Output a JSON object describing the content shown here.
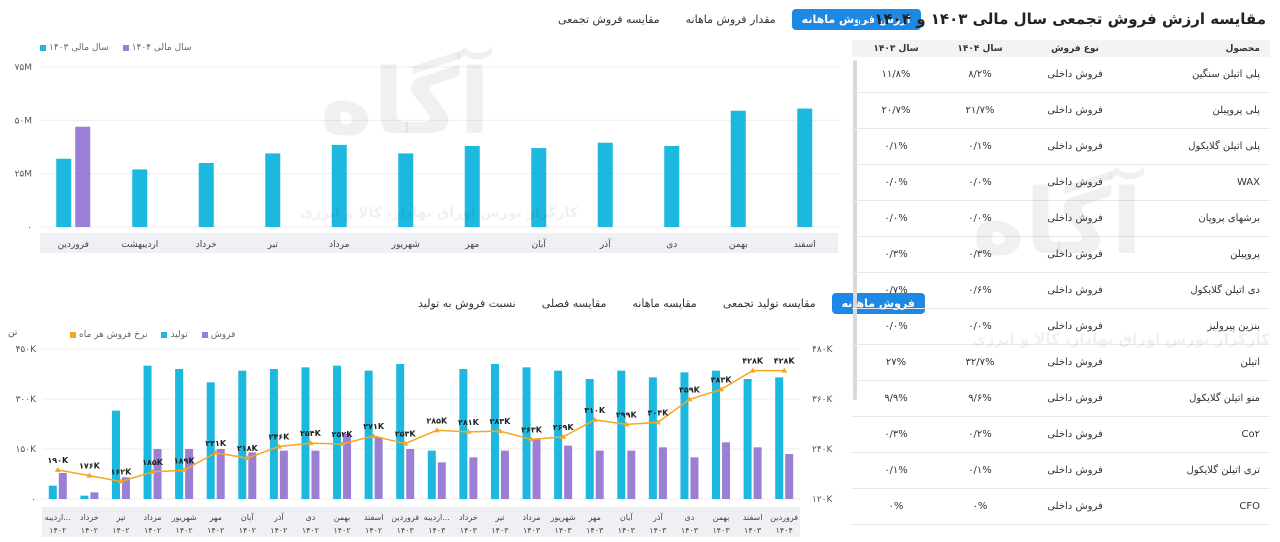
{
  "top_tabs": [
    "ارزش فروش ماهانه",
    "مقدار فروش ماهانه",
    "مقایسه فروش تجمعی"
  ],
  "bottom_tabs": [
    "فروش ماهانه",
    "مقایسه تولید تجمعی",
    "مقایسه ماهانه",
    "مقایسه فصلی",
    "نسبت فروش به تولید"
  ],
  "colors": {
    "blue": "#1cb8e0",
    "purple": "#9b7fd4",
    "orange": "#f5a623",
    "accent": "#1e88e5"
  },
  "watermark": {
    "brand": "آگاه",
    "tagline": "کارگزار بورس اوراق بهادار، کالا و انرژی"
  },
  "chart_data": [
    {
      "type": "bar",
      "legend": [
        "سال مالی ۱۴۰۳",
        "سال مالی ۱۴۰۴"
      ],
      "categories": [
        "فروردین",
        "اردیبهشت",
        "خرداد",
        "تیر",
        "مرداد",
        "شهریور",
        "مهر",
        "آبان",
        "آذر",
        "دی",
        "بهمن",
        "اسفند"
      ],
      "series": [
        {
          "name": "سال مالی ۱۴۰۳",
          "values": [
            32,
            27,
            30,
            34.5,
            38.5,
            34.5,
            38,
            37,
            39.5,
            38,
            54.5,
            55.5
          ]
        },
        {
          "name": "سال مالی ۱۴۰۴",
          "values": [
            47,
            null,
            null,
            null,
            null,
            null,
            null,
            null,
            null,
            null,
            null,
            null
          ]
        }
      ],
      "y_ticks": [
        "۷۵M",
        "۵۰M",
        "۲۵M",
        "۰"
      ],
      "ylim": [
        0,
        75
      ]
    },
    {
      "type": "bar-line",
      "legend": [
        "فروش",
        "تولید",
        "نرخ فروش هر ماه"
      ],
      "y_unit": "تن",
      "categories": [
        [
          "اردیبه...",
          "۱۴۰۲"
        ],
        [
          "خرداد",
          "۱۴۰۲"
        ],
        [
          "تیر",
          "۱۴۰۲"
        ],
        [
          "مرداد",
          "۱۴۰۲"
        ],
        [
          "شهریور",
          "۱۴۰۲"
        ],
        [
          "مهر",
          "۱۴۰۲"
        ],
        [
          "آبان",
          "۱۴۰۲"
        ],
        [
          "آذر",
          "۱۴۰۲"
        ],
        [
          "دی",
          "۱۴۰۲"
        ],
        [
          "بهمن",
          "۱۴۰۲"
        ],
        [
          "اسفند",
          "۱۴۰۲"
        ],
        [
          "فروردین",
          "۱۴۰۳"
        ],
        [
          "اردیبه...",
          "۱۴۰۳"
        ],
        [
          "خرداد",
          "۱۴۰۳"
        ],
        [
          "تیر",
          "۱۴۰۳"
        ],
        [
          "مرداد",
          "۱۴۰۳"
        ],
        [
          "شهریور",
          "۱۴۰۳"
        ],
        [
          "مهر",
          "۱۴۰۳"
        ],
        [
          "آبان",
          "۱۴۰۳"
        ],
        [
          "آذر",
          "۱۴۰۳"
        ],
        [
          "دی",
          "۱۴۰۳"
        ],
        [
          "بهمن",
          "۱۴۰۳"
        ],
        [
          "اسفند",
          "۱۴۰۳"
        ],
        [
          "فروردین",
          "۱۴۰۴"
        ]
      ],
      "production": [
        40,
        10,
        265,
        400,
        390,
        350,
        385,
        390,
        395,
        400,
        385,
        405,
        145,
        390,
        405,
        395,
        385,
        360,
        385,
        365,
        380,
        385,
        360,
        365
      ],
      "sales": [
        78,
        20,
        65,
        150,
        150,
        150,
        140,
        145,
        145,
        195,
        185,
        150,
        110,
        125,
        145,
        180,
        160,
        145,
        145,
        155,
        125,
        170,
        155,
        135
      ],
      "price": [
        190,
        176,
        162,
        185,
        189,
        231,
        218,
        246,
        254,
        252,
        271,
        253,
        285,
        281,
        283,
        263,
        269,
        310,
        299,
        304,
        359,
        383,
        428,
        428
      ],
      "price_labels": [
        "۱۹۰K",
        "۱۷۶K",
        "۱۶۲K",
        "۱۸۵K",
        "۱۸۹K",
        "۲۳۱K",
        "۲۱۸K",
        "۲۴۶K",
        "۲۵۴K",
        "۲۵۲K",
        "۲۷۱K",
        "۲۵۳K",
        "۲۸۵K",
        "۲۸۱K",
        "۲۸۳K",
        "۲۶۳K",
        "۲۶۹K",
        "۳۱۰K",
        "۲۹۹K",
        "۳۰۴K",
        "۳۵۹K",
        "۳۸۳K",
        "۴۲۸K",
        "۴۲۸K"
      ],
      "y_left_ticks": [
        "۴۵۰K",
        "۳۰۰K",
        "۱۵۰K",
        "۰"
      ],
      "y_right_ticks": [
        "۴۸۰K",
        "۳۶۰K",
        "۲۴۰K",
        "۱۲۰K"
      ],
      "ylim_left": [
        0,
        450
      ],
      "ylim_right": [
        120,
        480
      ]
    }
  ],
  "right_panel": {
    "title": "مقایسه ارزش فروش تجمعی سال مالی ۱۴۰۳ و ۱۴۰۴",
    "headers": [
      "محصول",
      "نوع فروش",
      "سال ۱۴۰۴",
      "سال ۱۴۰۳"
    ],
    "rows": [
      [
        "پلی اتیلن سنگین",
        "فروش داخلی",
        "۸/۲%",
        "۱۱/۸%"
      ],
      [
        "پلی پروپیلن",
        "فروش داخلی",
        "۲۱/۷%",
        "۲۰/۷%"
      ],
      [
        "پلی اتیلن گلایکول",
        "فروش داخلی",
        "۰/۱%",
        "۰/۱%"
      ],
      [
        "WAX",
        "فروش داخلی",
        "۰/۰%",
        "۰/۰%"
      ],
      [
        "برشهای پروپان",
        "فروش داخلی",
        "۰/۰%",
        "۰/۰%"
      ],
      [
        "پروپیلن",
        "فروش داخلی",
        "۰/۳%",
        "۰/۳%"
      ],
      [
        "دی اتیلن گلایکول",
        "فروش داخلی",
        "۰/۶%",
        "۰/۷%"
      ],
      [
        "بنزین پیرولیز",
        "فروش داخلی",
        "۰/۰%",
        "۰/۰%"
      ],
      [
        "اتیلن",
        "فروش داخلی",
        "۳۲/۷%",
        "۲۷%"
      ],
      [
        "منو اتیلن گلایکول",
        "فروش داخلی",
        "۹/۶%",
        "۹/۹%"
      ],
      [
        "Co۲",
        "فروش داخلی",
        "۰/۲%",
        "۰/۳%"
      ],
      [
        "تری اتیلن گلایکول",
        "فروش داخلی",
        "۰/۱%",
        "۰/۱%"
      ],
      [
        "CFO",
        "فروش داخلی",
        "۰%",
        "۰%"
      ]
    ]
  }
}
